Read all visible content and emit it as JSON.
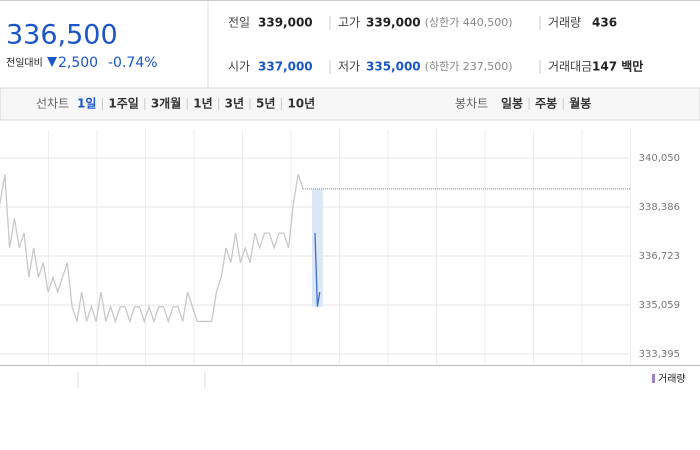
{
  "header": {
    "price": "336,500",
    "change_label": "전일대비",
    "change": "2,500",
    "change_rate": "-0.74%",
    "info": [
      [
        {
          "label": "전일",
          "value": "339,000"
        },
        {
          "label": "고가",
          "value": "339,000",
          "note": "(상한가 440,500)"
        },
        {
          "label": "거래량",
          "value": "436"
        }
      ],
      [
        {
          "label": "시가",
          "value": "337,000"
        },
        {
          "label": "저가",
          "value": "335,000",
          "note": "(하한가 237,500)"
        },
        {
          "label": "거래대금",
          "value": "147 백만"
        }
      ]
    ]
  },
  "tabs": {
    "line_label": "선차트",
    "line_items": [
      "1일",
      "1주일",
      "3개월",
      "1년",
      "3년",
      "5년",
      "10년"
    ],
    "selected_index": 0,
    "candle_label": "봉차트",
    "candle_items": [
      "일봉",
      "주봉",
      "월봉"
    ]
  },
  "chart_data": {
    "type": "line",
    "xlim": [
      0,
      131
    ],
    "ylim": [
      333395,
      340050
    ],
    "yticks": [
      {
        "value": 340050,
        "label": "340,050"
      },
      {
        "value": 338386,
        "label": "338,386"
      },
      {
        "value": 336723,
        "label": "336,723"
      },
      {
        "value": 335059,
        "label": "335,059"
      },
      {
        "value": 333395,
        "label": "333,395"
      }
    ],
    "grid": true,
    "reference_line": 339000,
    "series": [
      {
        "color": "#c8c8c8",
        "x": [
          0,
          1,
          2,
          3,
          4,
          5,
          6,
          7,
          8,
          9,
          10,
          11,
          12,
          13,
          14,
          15,
          16,
          17,
          18,
          19,
          20,
          21,
          22,
          23,
          24,
          25,
          26,
          27,
          28,
          29,
          30,
          31,
          32,
          33,
          34,
          35,
          36,
          37,
          38,
          39,
          40,
          41,
          42,
          43,
          44,
          45,
          46,
          47,
          48,
          49,
          50,
          51,
          52,
          53,
          54,
          55,
          56,
          57,
          58,
          59,
          60,
          61,
          62,
          63
        ],
        "values": [
          338500,
          339500,
          337000,
          338000,
          337000,
          337500,
          336000,
          337000,
          336000,
          336500,
          335500,
          336000,
          335500,
          336000,
          336500,
          335000,
          334500,
          335500,
          334500,
          335000,
          334500,
          335500,
          334500,
          335000,
          334500,
          335000,
          335000,
          334500,
          335000,
          335000,
          334500,
          335000,
          334500,
          335000,
          335000,
          334500,
          335000,
          335000,
          334500,
          335500,
          335000,
          334500,
          334500,
          334500,
          334500,
          335500,
          336000,
          337000,
          336500,
          337500,
          336500,
          337000,
          336500,
          337500,
          337000,
          337500,
          337500,
          337000,
          337500,
          337500,
          337000,
          338500,
          339500,
          339000
        ]
      },
      {
        "color": "#3c6fd0",
        "x": [
          65.5,
          66,
          66.5
        ],
        "values": [
          337500,
          335000,
          335500
        ]
      }
    ],
    "volume_legend": "거래량"
  }
}
